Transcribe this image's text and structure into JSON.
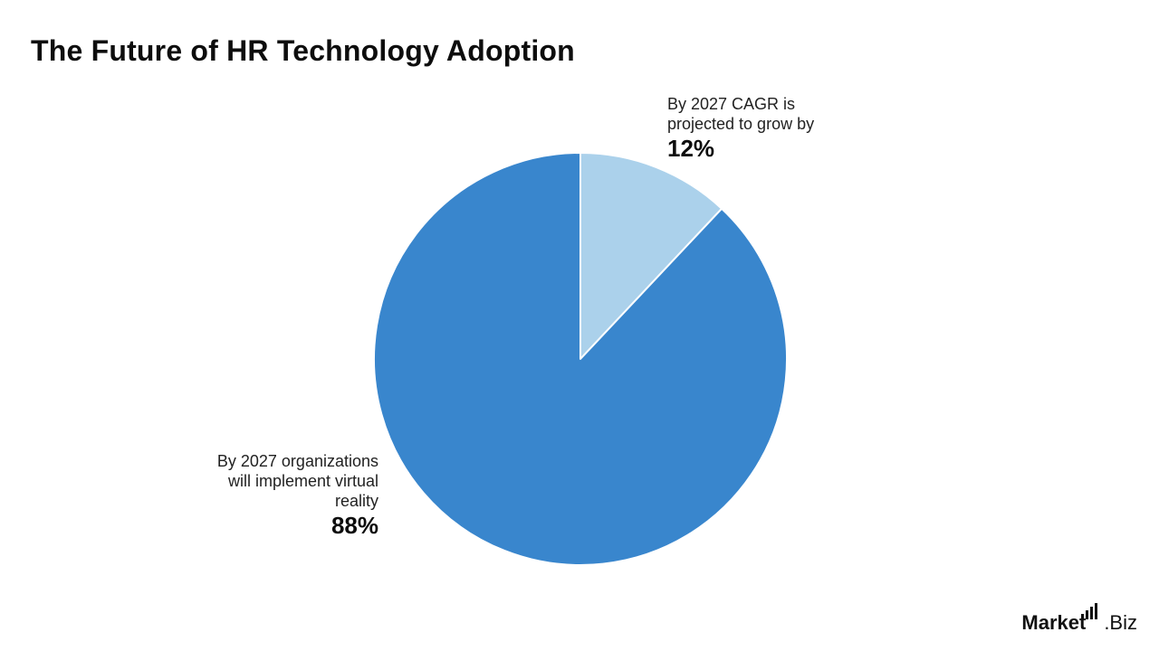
{
  "title": "The Future of HR Technology Adoption",
  "chart_data": {
    "type": "pie",
    "title": "The Future of HR Technology Adoption",
    "slices": [
      {
        "label": "By 2027 CAGR is projected to grow by",
        "value": 12,
        "display": "12%",
        "color": "#abd1eb"
      },
      {
        "label": "By 2027 organizations will implement virtual reality",
        "value": 88,
        "display": "88%",
        "color": "#3986cd"
      }
    ]
  },
  "labels": {
    "small": {
      "lines": [
        "By 2027 CAGR is",
        "projected to grow by"
      ],
      "pct": "12%"
    },
    "large": {
      "lines": [
        "By 2027 organizations",
        "will implement virtual",
        "reality"
      ],
      "pct": "88%"
    }
  },
  "logo": {
    "brand": "Market",
    "suffix": ".Biz"
  }
}
